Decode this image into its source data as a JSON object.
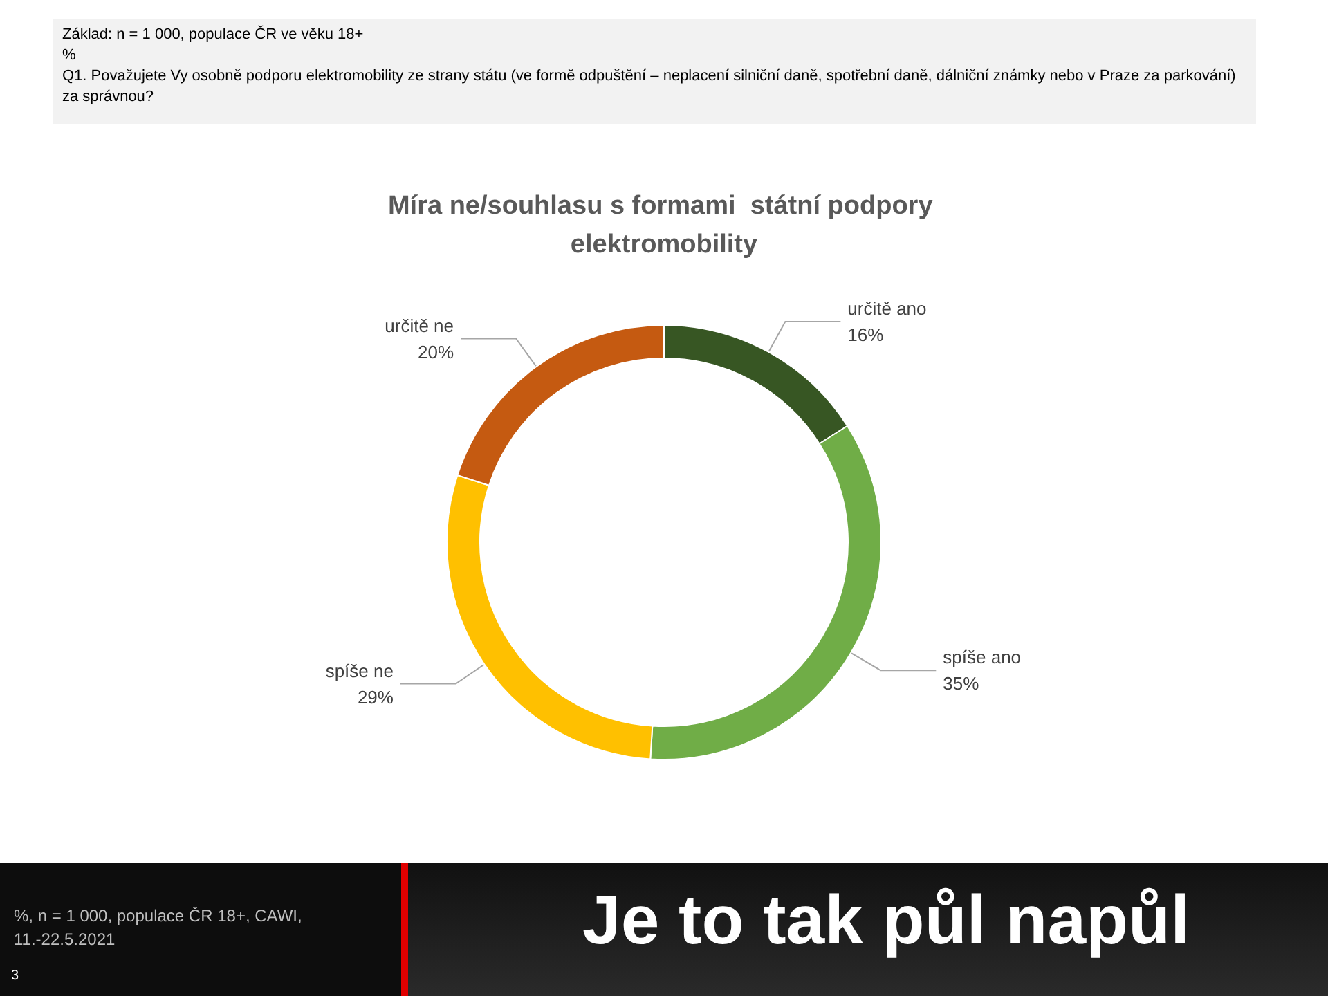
{
  "chart_data": {
    "type": "donut",
    "title": "Míra ne/souhlasu s formami  státní podpory elektromobility",
    "categories": [
      "určitě ano",
      "spíše ano",
      "spíše ne",
      "určitě ne"
    ],
    "values": [
      16,
      35,
      29,
      20
    ],
    "value_labels": [
      "16%",
      "35%",
      "29%",
      "20%"
    ],
    "colors": [
      "#375623",
      "#70ad47",
      "#ffc000",
      "#c55a11"
    ],
    "annotations": [
      "Základ: n = 1 000, populace ČR ve věku 18+",
      "%",
      "Q1. Považujete Vy osobně podporu elektromobility ze strany státu (ve formě odpuštění – neplacení silniční daně, spotřební daně, dálniční známky nebo v Praze za parkování) za správnou?",
      "%, n = 1 000, populace ČR 18+,  CAWI, 11.-22.5.2021",
      "Je to tak půl napůl",
      "3"
    ]
  }
}
